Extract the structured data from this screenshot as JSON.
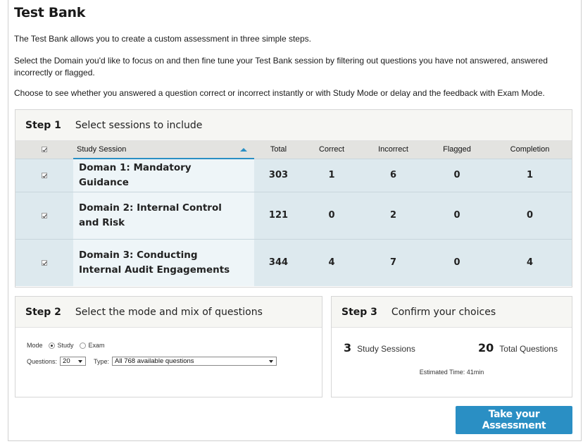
{
  "page": {
    "title": "Test Bank",
    "intro": [
      "The Test Bank allows you to create a custom assessment in three simple steps.",
      "Select the Domain you'd like to focus on and then fine tune your Test Bank session by filtering out questions you have not answered, answered incorrectly or flagged.",
      "Choose to see whether you answered a question correct or incorrect instantly or with Study Mode or delay and the feedback with Exam Mode."
    ]
  },
  "step1": {
    "num": "Step 1",
    "desc": "Select sessions to include",
    "columns": [
      "Study Session",
      "Total",
      "Correct",
      "Incorrect",
      "Flagged",
      "Completion"
    ],
    "sort_column": "Study Session",
    "sort_direction": "ascending",
    "select_all_checked": true,
    "rows": [
      {
        "checked": true,
        "name": "Doman 1: Mandatory Guidance",
        "total": "303",
        "correct": "1",
        "incorrect": "6",
        "flagged": "0",
        "completion": "1"
      },
      {
        "checked": true,
        "name": "Domain 2: Internal Control and Risk",
        "total": "121",
        "correct": "0",
        "incorrect": "2",
        "flagged": "0",
        "completion": "0"
      },
      {
        "checked": true,
        "name": "Domain 3: Conducting Internal Audit Engagements",
        "total": "344",
        "correct": "4",
        "incorrect": "7",
        "flagged": "0",
        "completion": "4"
      }
    ]
  },
  "step2": {
    "num": "Step 2",
    "desc": "Select the mode and mix of questions",
    "mode_label": "Mode",
    "mode_options": [
      "Study",
      "Exam"
    ],
    "mode_selected": "Study",
    "questions_label": "Questions:",
    "questions_value": "20",
    "type_label": "Type:",
    "type_value": "All 768 available questions"
  },
  "step3": {
    "num": "Step 3",
    "desc": "Confirm your choices",
    "sessions_count": "3",
    "sessions_label": "Study Sessions",
    "questions_count": "20",
    "questions_label": "Total Questions",
    "estimated": "Estimated Time: 41min"
  },
  "actions": {
    "take": "Take your Assessment"
  },
  "colors": {
    "accent": "#2a8fc4",
    "row_bg": "#dde9ee",
    "header_bg": "#e3e3e0"
  }
}
